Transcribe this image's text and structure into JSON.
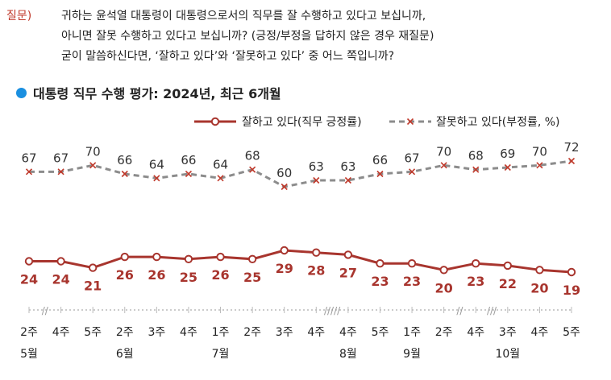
{
  "question": {
    "label": "질문)",
    "lines": [
      "귀하는 윤석열 대통령이 대통령으로서의 직무를 잘 수행하고 있다고 보십니까,",
      "아니면 잘못 수행하고 있다고 보십니까? (긍정/부정을 답하지 않은 경우 재질문)",
      "굳이 말씀하신다면, ‘잘하고 있다’와 ‘잘못하고 있다’ 중 어느 쪽입니까?"
    ]
  },
  "chart_title": "대통령 직무 수행 평가: 2024년, 최근 6개월",
  "colors": {
    "positive": "#a8352e",
    "negative": "#8c8c8c",
    "accent": "#1a8fe0",
    "axis": "#bbbbbb"
  },
  "chart_data": {
    "type": "line",
    "title": "대통령 직무 수행 평가: 2024년, 최근 6개월",
    "x": [
      "2주",
      "4주",
      "5주",
      "2주",
      "3주",
      "4주",
      "1주",
      "2주",
      "3주",
      "4주",
      "4주",
      "5주",
      "1주",
      "2주",
      "4주",
      "3주",
      "4주",
      "5주"
    ],
    "months": [
      {
        "label": "5월",
        "at": 0
      },
      {
        "label": "6월",
        "at": 3
      },
      {
        "label": "7월",
        "at": 6
      },
      {
        "label": "8월",
        "at": 10
      },
      {
        "label": "9월",
        "at": 12
      },
      {
        "label": "10월",
        "at": 15
      }
    ],
    "breaks": [
      {
        "after": 0,
        "mark": "//"
      },
      {
        "after": 9,
        "mark": "/////"
      },
      {
        "after": 13,
        "mark": "//"
      },
      {
        "after": 14,
        "mark": "///"
      }
    ],
    "series": [
      {
        "name": "잘하고 있다(직무 긍정률)",
        "values": [
          24,
          24,
          21,
          26,
          26,
          25,
          26,
          25,
          29,
          28,
          27,
          23,
          23,
          20,
          23,
          22,
          20,
          19
        ]
      },
      {
        "name": "잘못하고 있다(부정률, %)",
        "values": [
          67,
          67,
          70,
          66,
          64,
          66,
          64,
          68,
          60,
          63,
          63,
          66,
          67,
          70,
          68,
          69,
          70,
          72
        ]
      }
    ],
    "legend": "top-right",
    "grid": false
  }
}
